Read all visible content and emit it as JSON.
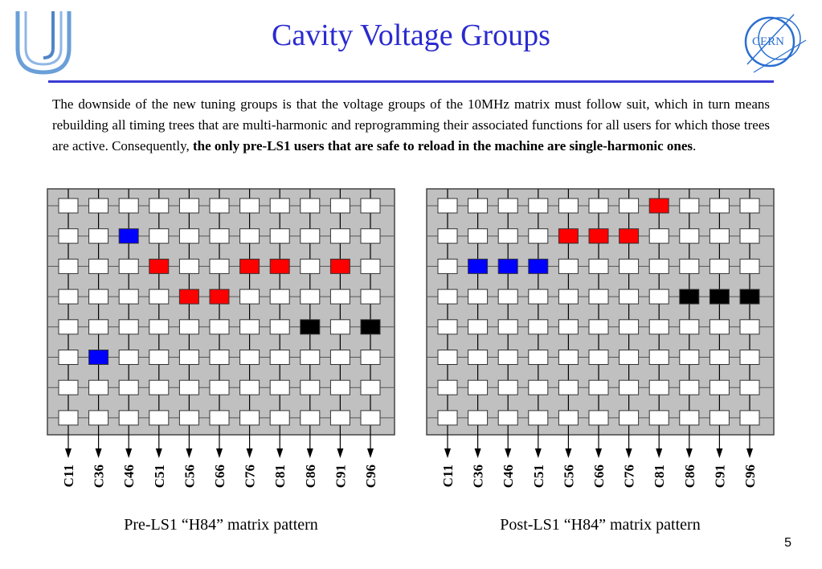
{
  "slide": {
    "title": "Cavity Voltage Groups",
    "page_number": "5",
    "paragraph_plain": "The downside of the new tuning groups is that the voltage groups of the 10MHz matrix must follow suit, which in turn means rebuilding all timing trees that are multi-harmonic and reprogramming their associated functions for all users for which those trees are active.  Consequently, ",
    "paragraph_bold": "the only pre-LS1 users that are safe to reload in the machine are single-harmonic ones",
    "paragraph_end": ".",
    "logo_right_text": "CERN"
  },
  "colors": {
    "white": "#ffffff",
    "red": "#ff0000",
    "blue": "#0000ff",
    "black": "#000000",
    "panel": "#c0c0c0",
    "accent": "#2a2ad0"
  },
  "matrices": [
    {
      "caption": "Pre-LS1 “H84” matrix pattern",
      "columns": [
        "C11",
        "C36",
        "C46",
        "C51",
        "C56",
        "C66",
        "C76",
        "C81",
        "C86",
        "C91",
        "C96"
      ],
      "rows": [
        [
          "white",
          "white",
          "white",
          "white",
          "white",
          "white",
          "white",
          "white",
          "white",
          "white",
          "white"
        ],
        [
          "white",
          "white",
          "blue",
          "white",
          "white",
          "white",
          "white",
          "white",
          "white",
          "white",
          "white"
        ],
        [
          "white",
          "white",
          "white",
          "red",
          "white",
          "white",
          "red",
          "red",
          "white",
          "red",
          "white"
        ],
        [
          "white",
          "white",
          "white",
          "white",
          "red",
          "red",
          "white",
          "white",
          "white",
          "white",
          "white"
        ],
        [
          "white",
          "white",
          "white",
          "white",
          "white",
          "white",
          "white",
          "white",
          "black",
          "white",
          "black"
        ],
        [
          "white",
          "blue",
          "white",
          "white",
          "white",
          "white",
          "white",
          "white",
          "white",
          "white",
          "white"
        ],
        [
          "white",
          "white",
          "white",
          "white",
          "white",
          "white",
          "white",
          "white",
          "white",
          "white",
          "white"
        ],
        [
          "white",
          "white",
          "white",
          "white",
          "white",
          "white",
          "white",
          "white",
          "white",
          "white",
          "white"
        ]
      ]
    },
    {
      "caption": "Post-LS1 “H84” matrix pattern",
      "columns": [
        "C11",
        "C36",
        "C46",
        "C51",
        "C56",
        "C66",
        "C76",
        "C81",
        "C86",
        "C91",
        "C96"
      ],
      "rows": [
        [
          "white",
          "white",
          "white",
          "white",
          "white",
          "white",
          "white",
          "red",
          "white",
          "white",
          "white"
        ],
        [
          "white",
          "white",
          "white",
          "white",
          "red",
          "red",
          "red",
          "white",
          "white",
          "white",
          "white"
        ],
        [
          "white",
          "blue",
          "blue",
          "blue",
          "white",
          "white",
          "white",
          "white",
          "white",
          "white",
          "white"
        ],
        [
          "white",
          "white",
          "white",
          "white",
          "white",
          "white",
          "white",
          "white",
          "black",
          "black",
          "black"
        ],
        [
          "white",
          "white",
          "white",
          "white",
          "white",
          "white",
          "white",
          "white",
          "white",
          "white",
          "white"
        ],
        [
          "white",
          "white",
          "white",
          "white",
          "white",
          "white",
          "white",
          "white",
          "white",
          "white",
          "white"
        ],
        [
          "white",
          "white",
          "white",
          "white",
          "white",
          "white",
          "white",
          "white",
          "white",
          "white",
          "white"
        ],
        [
          "white",
          "white",
          "white",
          "white",
          "white",
          "white",
          "white",
          "white",
          "white",
          "white",
          "white"
        ]
      ]
    }
  ]
}
